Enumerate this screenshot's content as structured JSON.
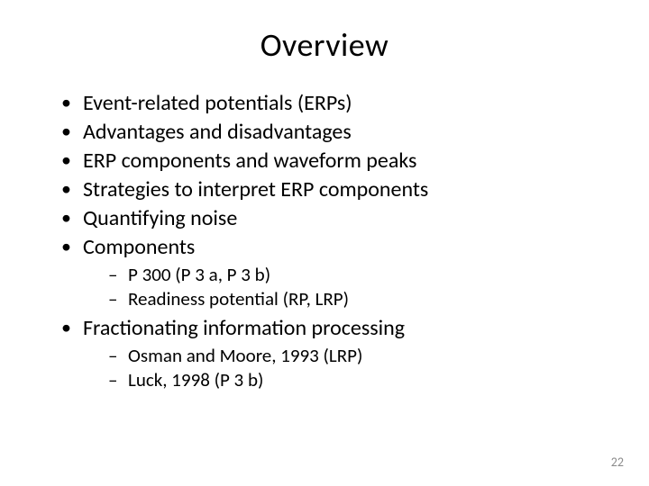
{
  "colors": {
    "background": "#ffffff",
    "text": "#000000",
    "page_number": "#8b8b8b"
  },
  "typography": {
    "family": "Calibri",
    "title_fontsize": 36,
    "level1_fontsize": 24,
    "level2_fontsize": 21,
    "pagenum_fontsize": 14
  },
  "title": "Overview",
  "bullets": [
    {
      "text": "Event-related potentials (ERPs)"
    },
    {
      "text": "Advantages and disadvantages"
    },
    {
      "text": "ERP components and waveform peaks"
    },
    {
      "text": "Strategies to interpret ERP components"
    },
    {
      "text": "Quantifying noise"
    },
    {
      "text": "Components",
      "children": [
        {
          "text": "P 300 (P 3 a, P 3 b)"
        },
        {
          "text": "Readiness potential (RP, LRP)"
        }
      ]
    },
    {
      "text": "Fractionating information processing",
      "children": [
        {
          "text": "Osman and Moore, 1993 (LRP)"
        },
        {
          "text": "Luck, 1998 (P 3 b)"
        }
      ]
    }
  ],
  "page_number": "22"
}
